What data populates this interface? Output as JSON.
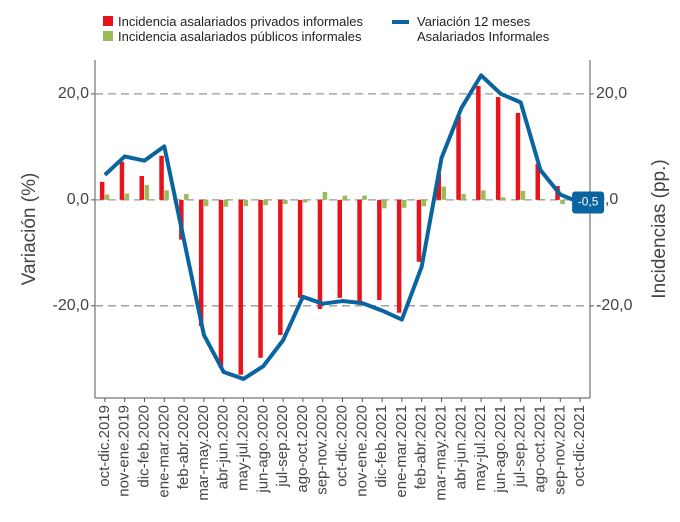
{
  "chart_data": {
    "type": "bar-line",
    "categories": [
      "oct-dic.2019",
      "nov-ene.2019",
      "dic-feb.2020",
      "ene-mar.2020",
      "feb-abr.2020",
      "mar-may.2020",
      "abr-jun.2020",
      "may-jul.2020",
      "jun-ago.2020",
      "jul-sep.2020",
      "ago-oct.2020",
      "sep-nov.2020",
      "oct-dic.2020",
      "nov-ene.2020",
      "dic-feb.2021",
      "ene-mar.2021",
      "feb-abr.2021",
      "mar-may.2021",
      "abr-jun.2021",
      "may-jul.2021",
      "jun-ago.2021",
      "jul-sep.2021",
      "ago-oct.2021",
      "sep-nov.2021",
      "oct-dic.2021"
    ],
    "series": [
      {
        "name": "Incidencia asalariados privados informales",
        "color": "#e8141c",
        "kind": "bar",
        "axis": "y2",
        "values": [
          3.4,
          7.2,
          4.5,
          8.3,
          -7.5,
          -23.8,
          -31.7,
          -33.0,
          -29.8,
          -25.5,
          -18.5,
          -20.6,
          -18.5,
          -19.8,
          -18.9,
          -21.3,
          -11.7,
          5.0,
          15.8,
          21.5,
          19.4,
          16.4,
          6.8,
          2.6,
          null
        ]
      },
      {
        "name": "Incidencia asalariados públicos informales",
        "color": "#9bbb59",
        "kind": "bar",
        "axis": "y2",
        "values": [
          1.0,
          1.2,
          2.8,
          1.8,
          1.1,
          -1.2,
          -1.3,
          -1.2,
          -1.0,
          -0.8,
          -0.5,
          1.5,
          0.8,
          0.8,
          -1.6,
          -1.5,
          -1.2,
          2.5,
          1.1,
          1.8,
          0.5,
          1.7,
          0.2,
          -0.8,
          null
        ]
      },
      {
        "name": "Variación 12 meses\nAsalariados Informales",
        "color": "#0a64a0",
        "kind": "line",
        "values": [
          4.7,
          8.2,
          7.4,
          10.1,
          -7.7,
          -25.5,
          -32.5,
          -33.8,
          -31.4,
          -26.5,
          -18.3,
          -19.6,
          -19.1,
          -19.5,
          -20.9,
          -22.6,
          -12.6,
          7.9,
          17.3,
          23.5,
          20.0,
          18.4,
          5.6,
          1.0,
          -0.5
        ],
        "value_labels": [
          null,
          null,
          null,
          null,
          null,
          null,
          null,
          null,
          null,
          null,
          null,
          null,
          null,
          null,
          null,
          null,
          null,
          null,
          null,
          null,
          null,
          null,
          null,
          null,
          "-0,5"
        ]
      }
    ],
    "ylabel": "Variación (%)",
    "y2label": "Incidencias (pp.)",
    "ylim": [
      -37.4,
      26.4
    ],
    "y2lim": [
      -37.4,
      26.4
    ],
    "yticks": [
      {
        "value": -20,
        "label": "-20,0"
      },
      {
        "value": 0,
        "label": "0,0"
      },
      {
        "value": 20,
        "label": "20,0"
      }
    ],
    "y2ticks": [
      {
        "value": -20,
        "label": "-20,0"
      },
      {
        "value": 0,
        "label": "0,0"
      },
      {
        "value": 20,
        "label": "20,0"
      }
    ],
    "grid": true
  }
}
